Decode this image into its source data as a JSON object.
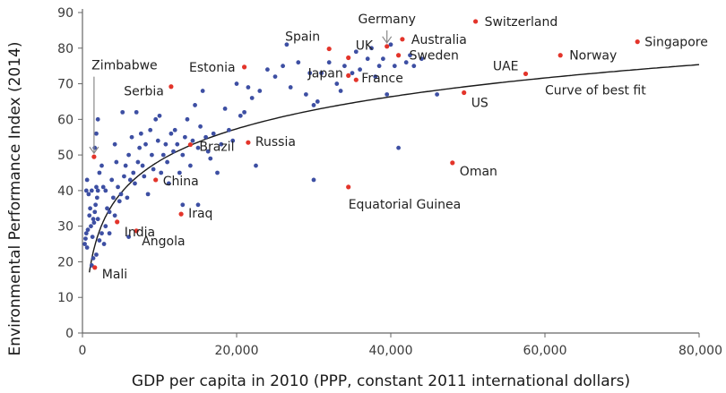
{
  "chart_data": {
    "type": "scatter",
    "xlabel": "GDP per capita in 2010 (PPP, constant 2011 international dollars)",
    "ylabel": "Environmental Performance Index (2014)",
    "xlim": [
      0,
      80000
    ],
    "ylim": [
      0,
      90
    ],
    "xticks": [
      0,
      20000,
      40000,
      60000,
      80000
    ],
    "xtick_labels": [
      "0",
      "20,000",
      "40,000",
      "60,000",
      "80,000"
    ],
    "yticks": [
      0,
      10,
      20,
      30,
      40,
      50,
      60,
      70,
      80,
      90
    ],
    "ytick_labels": [
      "0",
      "10",
      "20",
      "30",
      "40",
      "50",
      "60",
      "70",
      "80",
      "90"
    ],
    "grid": false,
    "colors": {
      "other": "#3d4fa3",
      "highlighted": "#e3342a",
      "curve": "#1a1a1a",
      "axis": "#666666"
    },
    "highlighted": [
      {
        "label": "Switzerland",
        "x": 51000,
        "y": 87.5
      },
      {
        "label": "Germany",
        "x": 39500,
        "y": 80.5
      },
      {
        "label": "Australia",
        "x": 41500,
        "y": 82.5
      },
      {
        "label": "Spain",
        "x": 32000,
        "y": 79.8
      },
      {
        "label": "UK",
        "x": 34500,
        "y": 77.3
      },
      {
        "label": "Sweden",
        "x": 41000,
        "y": 78.0
      },
      {
        "label": "Singapore",
        "x": 72000,
        "y": 81.8
      },
      {
        "label": "Norway",
        "x": 62000,
        "y": 78.0
      },
      {
        "label": "UAE",
        "x": 57500,
        "y": 72.8
      },
      {
        "label": "Japan",
        "x": 34500,
        "y": 72.3
      },
      {
        "label": "France",
        "x": 35500,
        "y": 71.1
      },
      {
        "label": "Estonia",
        "x": 21000,
        "y": 74.7
      },
      {
        "label": "US",
        "x": 49500,
        "y": 67.5
      },
      {
        "label": "Serbia",
        "x": 11500,
        "y": 69.2
      },
      {
        "label": "Zimbabwe",
        "x": 1500,
        "y": 49.5
      },
      {
        "label": "Russia",
        "x": 21500,
        "y": 53.5
      },
      {
        "label": "Brazil",
        "x": 14000,
        "y": 52.9
      },
      {
        "label": "China",
        "x": 9500,
        "y": 43.0
      },
      {
        "label": "Oman",
        "x": 48000,
        "y": 47.8
      },
      {
        "label": "Equatorial Guinea",
        "x": 34500,
        "y": 41.0
      },
      {
        "label": "Iraq",
        "x": 12800,
        "y": 33.4
      },
      {
        "label": "India",
        "x": 4500,
        "y": 31.2
      },
      {
        "label": "Angola",
        "x": 7000,
        "y": 28.7
      },
      {
        "label": "Mali",
        "x": 1600,
        "y": 18.4
      }
    ],
    "other_points": [
      [
        300,
        25
      ],
      [
        400,
        26.5
      ],
      [
        500,
        28
      ],
      [
        600,
        24
      ],
      [
        700,
        29
      ],
      [
        500,
        40
      ],
      [
        800,
        39
      ],
      [
        600,
        43
      ],
      [
        900,
        33
      ],
      [
        1000,
        35
      ],
      [
        1100,
        30
      ],
      [
        1200,
        40
      ],
      [
        1300,
        27
      ],
      [
        1400,
        32
      ],
      [
        1500,
        31
      ],
      [
        1600,
        34
      ],
      [
        1700,
        36
      ],
      [
        1800,
        41
      ],
      [
        1900,
        38
      ],
      [
        2000,
        40
      ],
      [
        1200,
        19
      ],
      [
        1400,
        21
      ],
      [
        1800,
        22
      ],
      [
        2200,
        26
      ],
      [
        2500,
        28
      ],
      [
        2800,
        25
      ],
      [
        1600,
        52
      ],
      [
        1800,
        56
      ],
      [
        2000,
        60
      ],
      [
        2200,
        45
      ],
      [
        2500,
        47
      ],
      [
        2700,
        41
      ],
      [
        3000,
        40
      ],
      [
        3200,
        35
      ],
      [
        3500,
        34
      ],
      [
        3800,
        43
      ],
      [
        4000,
        38
      ],
      [
        4200,
        53
      ],
      [
        4400,
        48
      ],
      [
        4600,
        41
      ],
      [
        4800,
        37
      ],
      [
        5000,
        39
      ],
      [
        5200,
        62
      ],
      [
        5400,
        44
      ],
      [
        5600,
        47
      ],
      [
        5800,
        38
      ],
      [
        6000,
        50
      ],
      [
        6200,
        43
      ],
      [
        6400,
        55
      ],
      [
        6600,
        45
      ],
      [
        6800,
        42
      ],
      [
        7000,
        62
      ],
      [
        7200,
        48
      ],
      [
        7400,
        52
      ],
      [
        7600,
        56
      ],
      [
        7800,
        47
      ],
      [
        8000,
        44
      ],
      [
        8200,
        53
      ],
      [
        8500,
        39
      ],
      [
        8800,
        57
      ],
      [
        9000,
        50
      ],
      [
        9200,
        46
      ],
      [
        9500,
        60
      ],
      [
        9800,
        54
      ],
      [
        10000,
        61
      ],
      [
        10200,
        45
      ],
      [
        10500,
        50
      ],
      [
        10800,
        53
      ],
      [
        11000,
        48
      ],
      [
        11200,
        42
      ],
      [
        11500,
        56
      ],
      [
        11800,
        51
      ],
      [
        12000,
        57
      ],
      [
        12300,
        53
      ],
      [
        12600,
        45
      ],
      [
        13000,
        50
      ],
      [
        13300,
        55
      ],
      [
        13600,
        60
      ],
      [
        14000,
        47
      ],
      [
        14300,
        54
      ],
      [
        14600,
        64
      ],
      [
        15000,
        52
      ],
      [
        15300,
        58
      ],
      [
        15600,
        68
      ],
      [
        16000,
        55
      ],
      [
        16300,
        51
      ],
      [
        16600,
        49
      ],
      [
        17000,
        56
      ],
      [
        17500,
        45
      ],
      [
        18000,
        53
      ],
      [
        18500,
        63
      ],
      [
        19000,
        57
      ],
      [
        19500,
        54
      ],
      [
        20000,
        70
      ],
      [
        20500,
        61
      ],
      [
        21000,
        62
      ],
      [
        21500,
        69
      ],
      [
        22000,
        66
      ],
      [
        22500,
        47
      ],
      [
        23000,
        68
      ],
      [
        24000,
        74
      ],
      [
        25000,
        72
      ],
      [
        26000,
        75
      ],
      [
        26500,
        81
      ],
      [
        27000,
        69
      ],
      [
        28000,
        76
      ],
      [
        29000,
        67
      ],
      [
        29500,
        73
      ],
      [
        30000,
        64
      ],
      [
        30500,
        65
      ],
      [
        31000,
        73
      ],
      [
        32000,
        76
      ],
      [
        33000,
        70
      ],
      [
        33500,
        68
      ],
      [
        34000,
        75
      ],
      [
        35000,
        73
      ],
      [
        35500,
        79
      ],
      [
        36000,
        74
      ],
      [
        37000,
        77
      ],
      [
        37500,
        80
      ],
      [
        38000,
        72
      ],
      [
        38500,
        75
      ],
      [
        39000,
        77
      ],
      [
        39500,
        67
      ],
      [
        40000,
        81
      ],
      [
        40500,
        75
      ],
      [
        41000,
        52
      ],
      [
        42000,
        76
      ],
      [
        42500,
        78
      ],
      [
        43000,
        75
      ],
      [
        44000,
        77
      ],
      [
        46000,
        67
      ],
      [
        30000,
        43
      ],
      [
        13000,
        36
      ],
      [
        15000,
        36
      ],
      [
        3000,
        30
      ],
      [
        4200,
        33
      ],
      [
        6000,
        27
      ],
      [
        2000,
        32
      ],
      [
        3500,
        28
      ]
    ],
    "best_fit": {
      "label": "Curve of best fit",
      "a": -71.4,
      "b": 13.0
    },
    "annotations": [
      {
        "text": "Curve of best fit",
        "x": 60000,
        "y": 67
      },
      {
        "text": "Zimbabwe",
        "x": 1500,
        "y": 74,
        "arrow_to": [
          1500,
          50.5
        ]
      },
      {
        "text": "Germany",
        "x": 39500,
        "y": 87,
        "arrow_to": [
          39500,
          81.5
        ]
      }
    ]
  }
}
